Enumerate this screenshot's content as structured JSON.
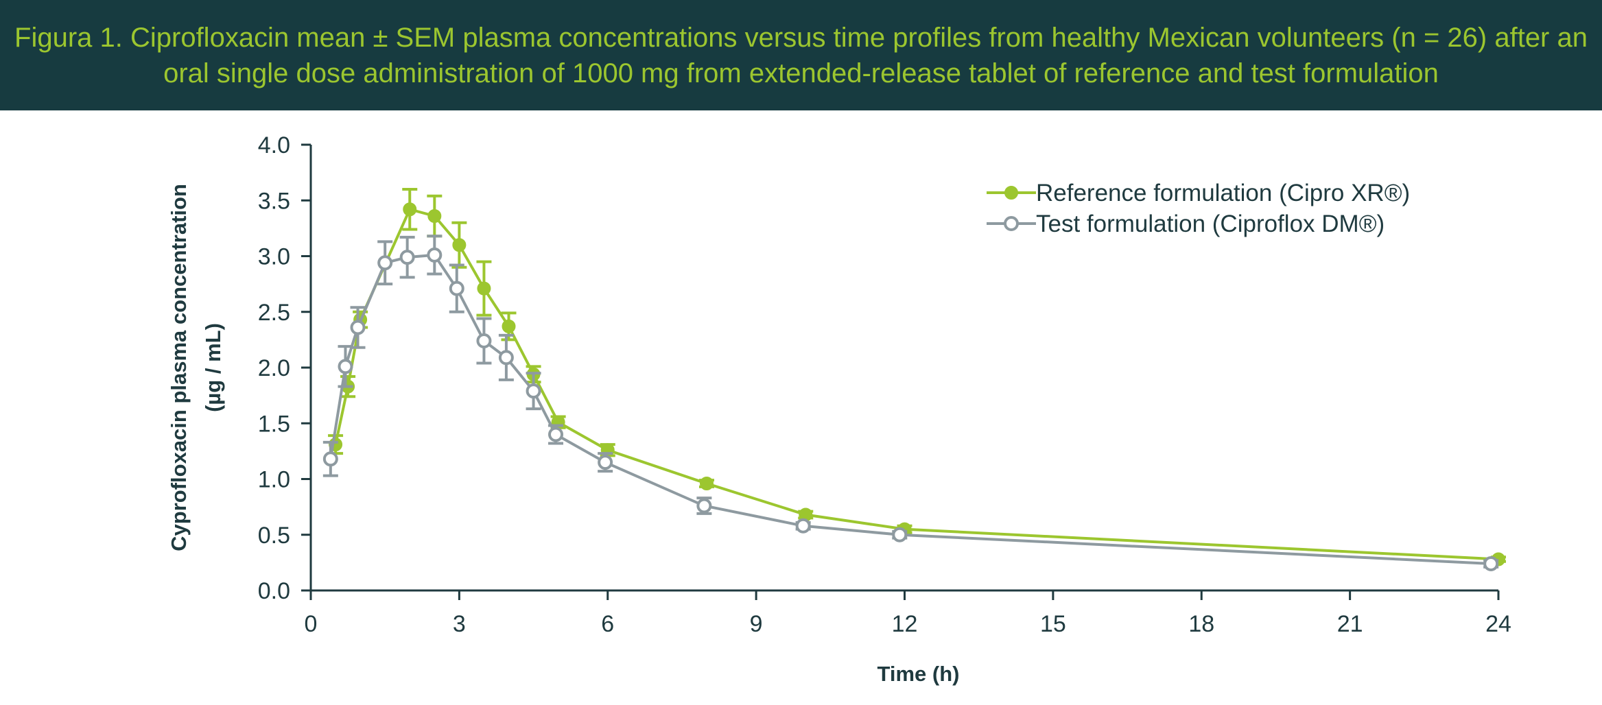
{
  "header": {
    "title": "Figura 1. Ciprofloxacin mean ± SEM plasma concentrations versus time profiles from healthy Mexican volunteers (n = 26) after an oral single dose administration of 1000 mg from extended-release tablet of reference and test formulation"
  },
  "colors": {
    "header_bg": "#173b40",
    "title_text": "#9cc62f",
    "reference": "#9cc62f",
    "test": "#8e9aa0",
    "axis": "#1f3a3f"
  },
  "chart_data": {
    "type": "line",
    "xlabel": "Time (h)",
    "ylabel_line1": "Cyprofloxacin plasma concentration",
    "ylabel_line2": "(µg / mL)",
    "xlim": [
      0,
      24
    ],
    "ylim": [
      0,
      4.0
    ],
    "xticks": [
      "0",
      "3",
      "6",
      "9",
      "12",
      "15",
      "18",
      "21",
      "24"
    ],
    "yticks": [
      "0.0",
      "0.5",
      "1.0",
      "1.5",
      "2.0",
      "2.5",
      "3.0",
      "3.5",
      "4.0"
    ],
    "grid": false,
    "legend_position": "top-right",
    "error_bars": "SEM",
    "series": [
      {
        "name": "Reference formulation (Cipro XR®)",
        "marker": "filled-circle",
        "x": [
          0.5,
          0.75,
          1.0,
          2.0,
          2.5,
          3.0,
          3.5,
          4.0,
          4.5,
          5.0,
          6.0,
          8.0,
          10.0,
          12.0,
          24.0
        ],
        "y": [
          1.31,
          1.83,
          2.43,
          3.42,
          3.36,
          3.1,
          2.71,
          2.37,
          1.94,
          1.51,
          1.26,
          0.96,
          0.68,
          0.55,
          0.28
        ],
        "sem": [
          0.08,
          0.09,
          0.07,
          0.18,
          0.18,
          0.2,
          0.24,
          0.12,
          0.07,
          0.05,
          0.05,
          0.03,
          0.03,
          0.03,
          0.02
        ]
      },
      {
        "name": "Test formulation (Ciproflox DM®)",
        "marker": "open-circle",
        "x": [
          0.4,
          0.7,
          0.95,
          1.5,
          1.95,
          2.5,
          2.95,
          3.5,
          3.95,
          4.5,
          4.95,
          5.95,
          7.95,
          9.95,
          11.9,
          23.85
        ],
        "y": [
          1.18,
          2.01,
          2.36,
          2.94,
          2.99,
          3.01,
          2.71,
          2.24,
          2.09,
          1.79,
          1.4,
          1.15,
          0.76,
          0.58,
          0.5,
          0.24
        ],
        "sem": [
          0.15,
          0.18,
          0.18,
          0.19,
          0.18,
          0.17,
          0.21,
          0.2,
          0.2,
          0.16,
          0.08,
          0.08,
          0.07,
          0.03,
          0.03,
          0.03
        ]
      }
    ]
  }
}
